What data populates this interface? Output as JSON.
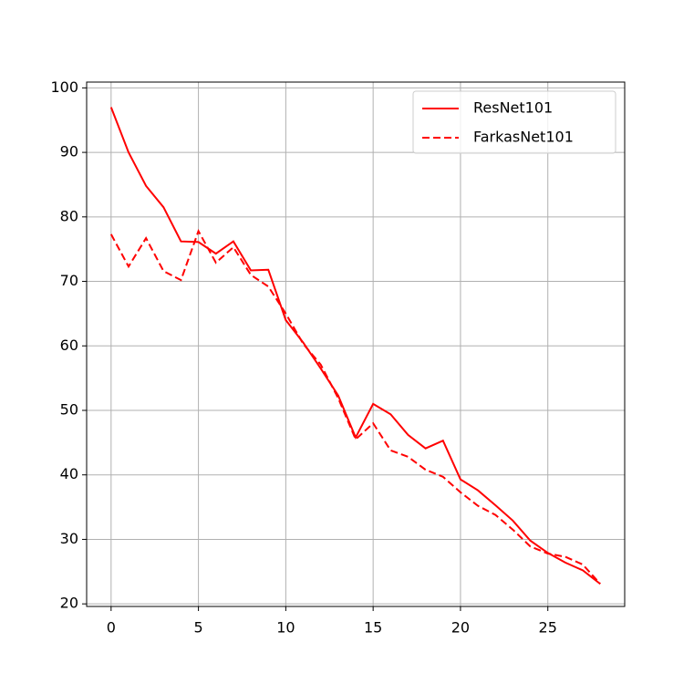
{
  "chart_data": {
    "type": "line",
    "x": [
      0,
      1,
      2,
      3,
      4,
      5,
      6,
      7,
      8,
      9,
      10,
      11,
      12,
      13,
      14,
      15,
      16,
      17,
      18,
      19,
      20,
      21,
      22,
      23,
      24,
      25,
      26,
      27,
      28
    ],
    "series": [
      {
        "name": "ResNet101",
        "color": "#ff0000",
        "linestyle": "solid",
        "values": [
          97,
          90,
          84.8,
          81.5,
          76.2,
          76.1,
          74.3,
          76.2,
          71.7,
          71.8,
          64,
          60.5,
          56.5,
          52.3,
          45.8,
          51,
          49.4,
          46.2,
          44.1,
          45.3,
          39.3,
          37.6,
          35.3,
          32.9,
          29.8,
          27.9,
          26.4,
          25.2,
          23.1
        ]
      },
      {
        "name": "FarkasNet101",
        "color": "#ff0000",
        "linestyle": "dashed",
        "values": [
          77.3,
          72.3,
          76.7,
          71.6,
          70.2,
          77.8,
          72.9,
          75.3,
          71,
          69.2,
          65,
          60.3,
          57.1,
          51.9,
          45.5,
          48,
          43.8,
          42.8,
          40.8,
          39.7,
          37.3,
          35.2,
          33.8,
          31.5,
          28.9,
          27.8,
          27.3,
          26.1,
          23.1
        ]
      }
    ],
    "xlim": [
      -1.4,
      29.4
    ],
    "ylim": [
      19.6,
      100.9
    ],
    "xticks": [
      0,
      5,
      10,
      15,
      20,
      25
    ],
    "yticks": [
      20,
      30,
      40,
      50,
      60,
      70,
      80,
      90,
      100
    ],
    "grid": true,
    "legend": "upper right"
  }
}
